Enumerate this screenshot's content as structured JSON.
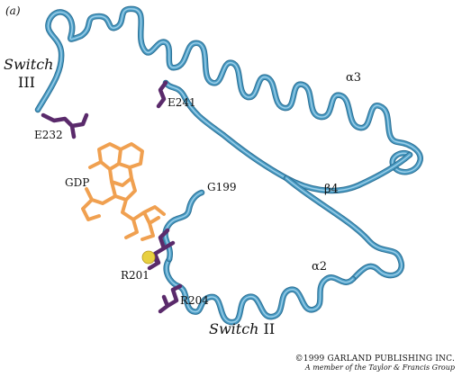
{
  "panel_label": "(a)",
  "labels": {
    "switch3_line1": "Switch",
    "switch3_line2": "III",
    "e232": "E232",
    "e241": "E241",
    "alpha3": "α3",
    "beta4": "β4",
    "gdp": "GDP",
    "g199": "G199",
    "alpha2": "α2",
    "r201": "R201",
    "r204": "R204",
    "switch2_word": "Switch",
    "switch2_numeral": " II"
  },
  "copyright": {
    "line1": "©1999 GARLAND PUBLISHING INC.",
    "line2": "A member of the Taylor & Francis Group"
  },
  "colors": {
    "backbone": "#4a9cc4",
    "backbone_highlight": "#9fd0ea",
    "backbone_shadow": "#2c6f94",
    "side_chain": "#5a2a6b",
    "gdp": "#f0a050",
    "magnesium": "#e8d040"
  }
}
